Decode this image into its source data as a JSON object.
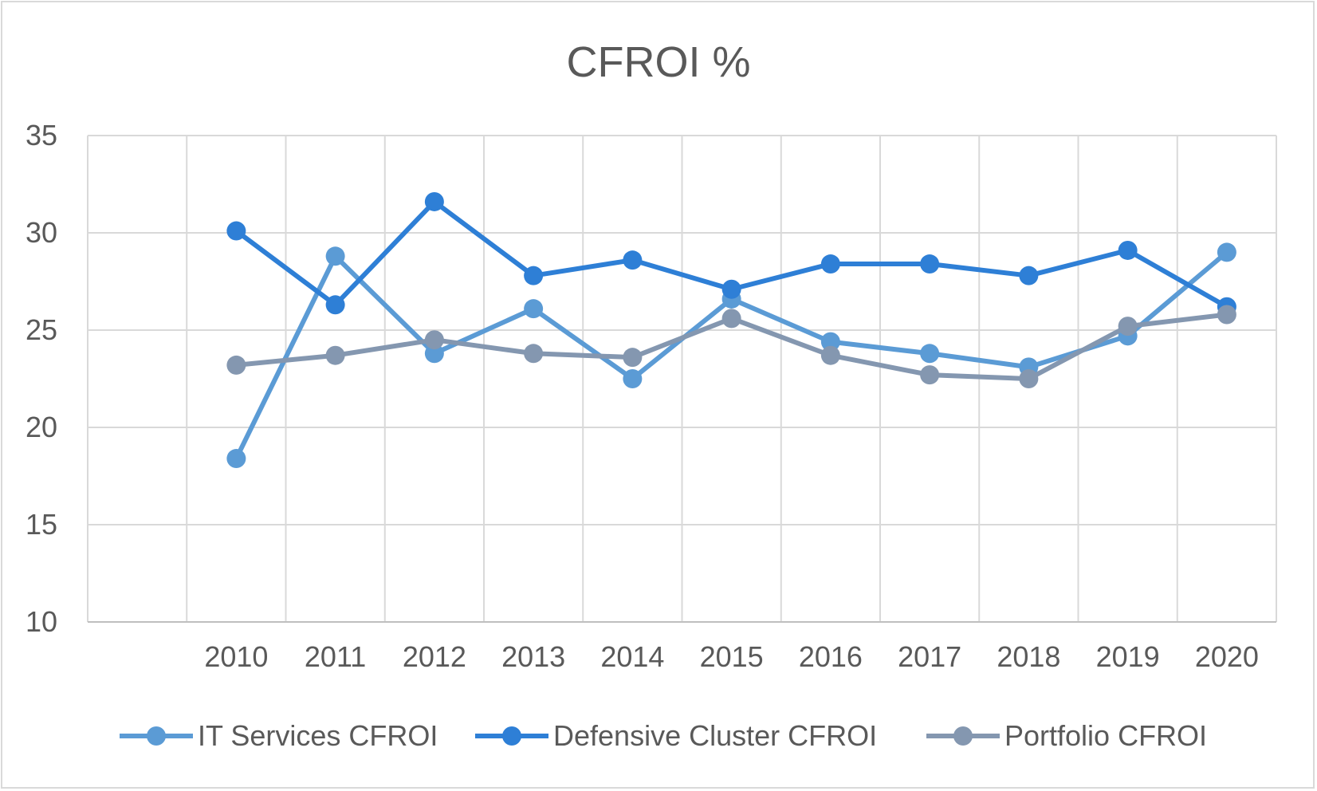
{
  "chart_data": {
    "type": "line",
    "title": "CFROI %",
    "xlabel": "",
    "ylabel": "",
    "categories": [
      "",
      "2010",
      "2011",
      "2012",
      "2013",
      "2014",
      "2015",
      "2016",
      "2017",
      "2018",
      "2019",
      "2020"
    ],
    "ylim": [
      10,
      35
    ],
    "yticks": [
      "10",
      "15",
      "20",
      "25",
      "30",
      "35"
    ],
    "grid": true,
    "legend_position": "bottom",
    "series": [
      {
        "name": "IT Services CFROI",
        "color": "#5b9bd5",
        "values": [
          null,
          18.4,
          28.8,
          23.8,
          26.1,
          22.5,
          26.6,
          24.4,
          23.8,
          23.1,
          24.7,
          29.0
        ]
      },
      {
        "name": "Defensive Cluster CFROI",
        "color": "#2e7fd6",
        "values": [
          null,
          30.1,
          26.3,
          31.6,
          27.8,
          28.6,
          27.1,
          28.4,
          28.4,
          27.8,
          29.1,
          26.2
        ]
      },
      {
        "name": "Portfolio CFROI",
        "color": "#8497b0",
        "values": [
          null,
          23.2,
          23.7,
          24.5,
          23.8,
          23.6,
          25.6,
          23.7,
          22.7,
          22.5,
          25.2,
          25.8
        ]
      }
    ]
  }
}
